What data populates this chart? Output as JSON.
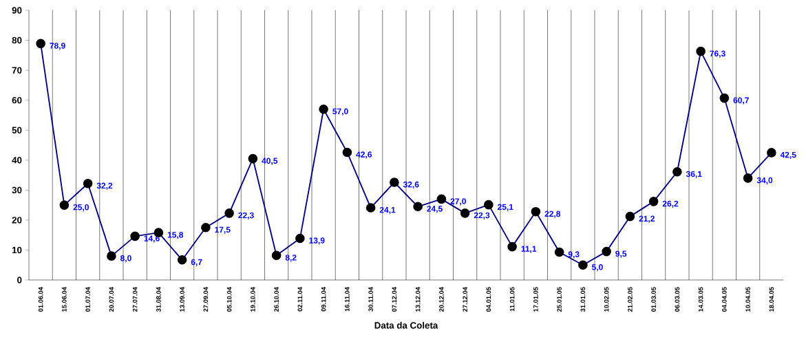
{
  "chart_data": {
    "type": "line",
    "xlabel": "Data da Coleta",
    "categories": [
      "01.06.04",
      "15.06.04",
      "01.07.04",
      "20.07.04",
      "27.07.04",
      "31.08.04",
      "13.09.04",
      "27.09.04",
      "05.10.04",
      "19.10.04",
      "26.10.04",
      "02.11.04",
      "09.11.04",
      "16.11.04",
      "30.11.04",
      "07.12.04",
      "13.12.04",
      "20.12.04",
      "27.12.04",
      "04.01.05",
      "11.01.05",
      "17.01.05",
      "25.01.05",
      "31.01.05",
      "10.02.05",
      "21.02.05",
      "01.03.05",
      "06.03.05",
      "14.03.05",
      "04.04.05",
      "10.04.05",
      "18.04.05"
    ],
    "values": [
      78.9,
      25.0,
      32.2,
      8.0,
      14.6,
      15.8,
      6.7,
      17.5,
      22.3,
      40.5,
      8.2,
      13.9,
      57.0,
      42.6,
      24.1,
      32.6,
      24.5,
      27.0,
      22.3,
      25.1,
      11.1,
      22.8,
      9.3,
      5.0,
      9.5,
      21.2,
      26.2,
      36.1,
      76.3,
      60.7,
      34.0,
      42.5
    ],
    "value_labels": [
      "78,9",
      "25,0",
      "32,2",
      "8,0",
      "14,6",
      "15,8",
      "6,7",
      "17,5",
      "22,3",
      "40,5",
      "8,2",
      "13,9",
      "57,0",
      "42,6",
      "24,1",
      "32,6",
      "24,5",
      "27,0",
      "22,3",
      "25,1",
      "11,1",
      "22,8",
      "9,3",
      "5,0",
      "9,5",
      "21,2",
      "26,2",
      "36,1",
      "76,3",
      "60,7",
      "34,0",
      "42,5"
    ],
    "color": "#000080",
    "marker": "circle",
    "line_style": "solid",
    "ylim": [
      0,
      90
    ],
    "yticks": [
      0,
      10,
      20,
      30,
      40,
      50,
      60,
      70,
      80,
      90
    ],
    "grid": "x"
  }
}
